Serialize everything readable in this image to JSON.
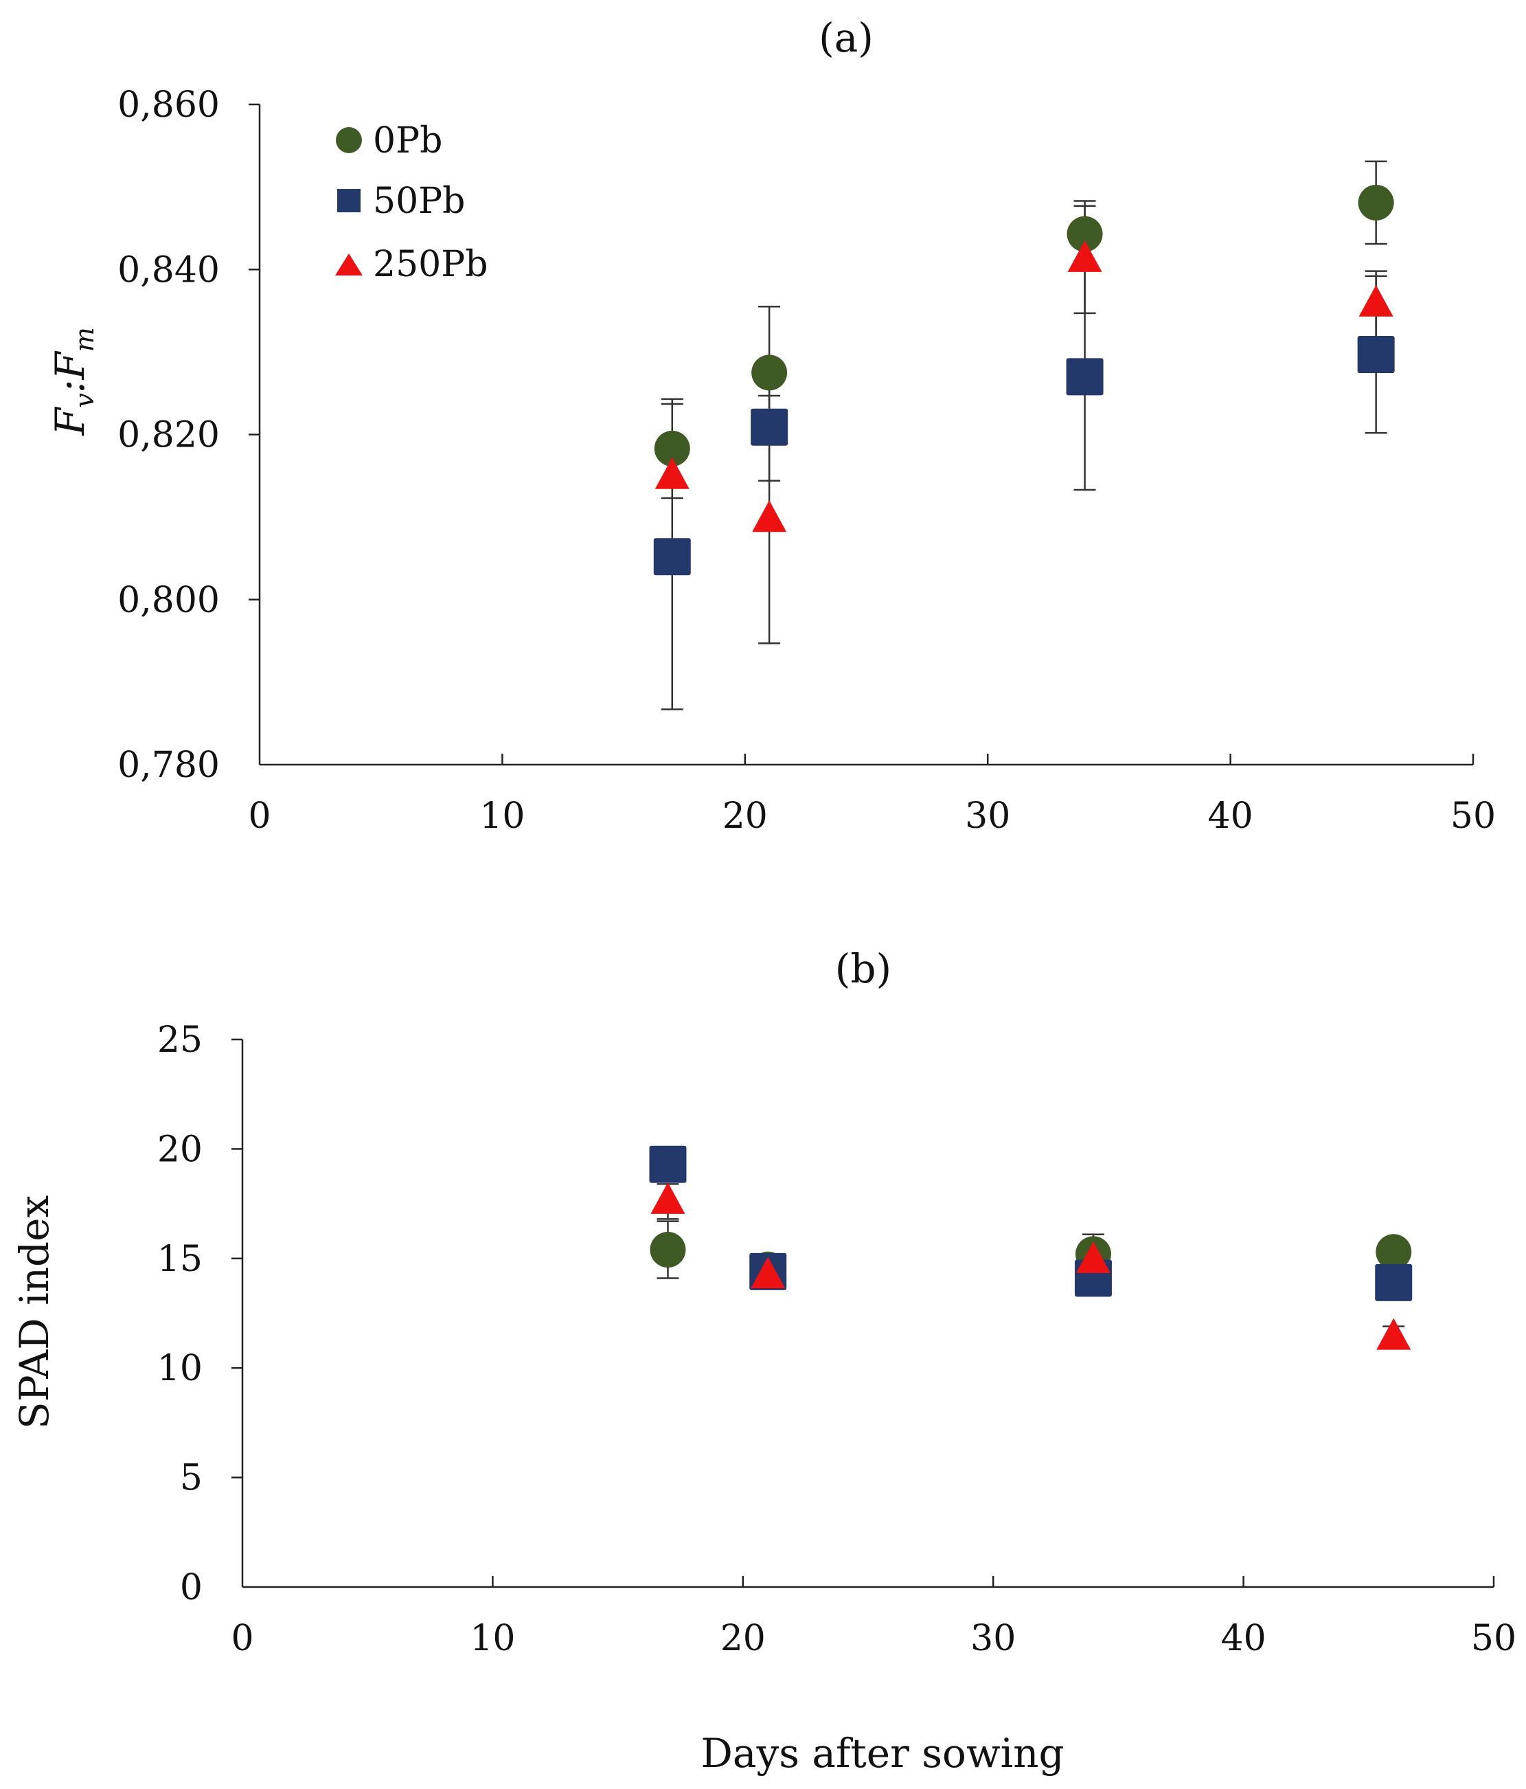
{
  "figure": {
    "xlabel": "Days after sowing"
  },
  "colors": {
    "0Pb": "#3f5a24",
    "50Pb": "#23386b",
    "250Pb": "#ee1111"
  },
  "chart_data": [
    {
      "type": "scatter",
      "title": "(a)",
      "xlabel": "",
      "ylabel_main": "F",
      "ylabel_sub1": "v",
      "ylabel_sep": ":",
      "ylabel_sub2": "m",
      "xlim": [
        0,
        50
      ],
      "ylim": [
        0.78,
        0.86
      ],
      "xticks": [
        0,
        10,
        20,
        30,
        40,
        50
      ],
      "xtick_labels": [
        "0",
        "10",
        "20",
        "30",
        "40",
        "50"
      ],
      "yticks": [
        0.78,
        0.8,
        0.82,
        0.84,
        0.86
      ],
      "ytick_labels": [
        "0,780",
        "0,800",
        "0,820",
        "0,840",
        "0,860"
      ],
      "legend": [
        "0Pb",
        "50Pb",
        "250Pb"
      ],
      "legend_position": "top-left",
      "series": [
        {
          "name": "0Pb",
          "marker": "circle",
          "points": [
            {
              "x": 17,
              "y": 0.8183,
              "err": 0.006
            },
            {
              "x": 21,
              "y": 0.8275,
              "err": 0.008
            },
            {
              "x": 34,
              "y": 0.8443,
              "err": 0.004
            },
            {
              "x": 46,
              "y": 0.8481,
              "err": 0.005
            }
          ]
        },
        {
          "name": "50Pb",
          "marker": "square",
          "points": [
            {
              "x": 17,
              "y": 0.8052,
              "err": 0.0185
            },
            {
              "x": 21,
              "y": 0.8209,
              "err": 0.0065
            },
            {
              "x": 34,
              "y": 0.827,
              "err": 0.0137
            },
            {
              "x": 46,
              "y": 0.8297,
              "err": 0.0095
            }
          ]
        },
        {
          "name": "250Pb",
          "marker": "triangle",
          "points": [
            {
              "x": 17,
              "y": 0.8149,
              "err": 0.0
            },
            {
              "x": 21,
              "y": 0.8097,
              "err": 0.015
            },
            {
              "x": 34,
              "y": 0.8412,
              "err": 0.0065
            },
            {
              "x": 46,
              "y": 0.8358,
              "err": 0.004
            }
          ]
        }
      ]
    },
    {
      "type": "scatter",
      "title": "(b)",
      "xlabel": "Days after sowing",
      "ylabel": "SPAD index",
      "xlim": [
        0,
        50
      ],
      "ylim": [
        0,
        25
      ],
      "xticks": [
        0,
        10,
        20,
        30,
        40,
        50
      ],
      "xtick_labels": [
        "0",
        "10",
        "20",
        "30",
        "40",
        "50"
      ],
      "yticks": [
        0,
        5,
        10,
        15,
        20,
        25
      ],
      "ytick_labels": [
        "0",
        "5",
        "10",
        "15",
        "20",
        "25"
      ],
      "series": [
        {
          "name": "0Pb",
          "marker": "circle",
          "points": [
            {
              "x": 17,
              "y": 15.4,
              "err": 1.3
            },
            {
              "x": 21,
              "y": 14.5,
              "err": 0.2
            },
            {
              "x": 34,
              "y": 15.2,
              "err": 0.9
            },
            {
              "x": 46,
              "y": 15.3,
              "err": 0.3
            }
          ]
        },
        {
          "name": "50Pb",
          "marker": "square",
          "points": [
            {
              "x": 17,
              "y": 19.3,
              "err": 0.2
            },
            {
              "x": 21,
              "y": 14.4,
              "err": 0.2
            },
            {
              "x": 34,
              "y": 14.1,
              "err": 0.3
            },
            {
              "x": 46,
              "y": 13.9,
              "err": 0.3
            }
          ]
        },
        {
          "name": "250Pb",
          "marker": "triangle",
          "points": [
            {
              "x": 17,
              "y": 17.6,
              "err": 0.8
            },
            {
              "x": 21,
              "y": 14.2,
              "err": 0.2
            },
            {
              "x": 34,
              "y": 14.9,
              "err": 0.3
            },
            {
              "x": 46,
              "y": 11.4,
              "err": 0.5
            }
          ]
        }
      ]
    }
  ]
}
